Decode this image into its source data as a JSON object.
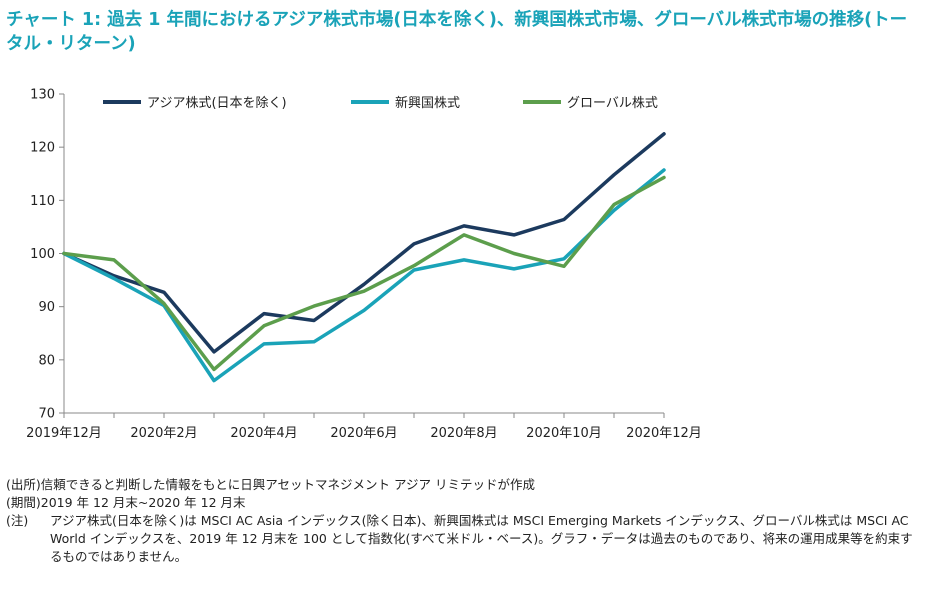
{
  "title": "チャート 1: 過去 1 年間におけるアジア株式市場(日本を除く)、新興国株式市場、グローバル株式市場の推移(トータル・リターン)",
  "notes": [
    {
      "key": "(出所)",
      "text": "信頼できると判断した情報をもとに日興アセットマネジメント アジア リミテッドが作成"
    },
    {
      "key": "(期間)",
      "text": "2019 年 12 月末~2020 年 12 月末"
    },
    {
      "key": "(注)",
      "text": "アジア株式(日本を除く)は MSCI AC Asia インデックス(除く日本)、新興国株式は MSCI Emerging Markets インデックス、グローバル株式は MSCI AC World インデックスを、2019 年 12 月末を 100 として指数化(すべて米ドル・ベース)。グラフ・データは過去のものであり、将来の運用成果等を約束するものではありません。"
    }
  ],
  "chart_data": {
    "type": "line",
    "title": "",
    "xlabel": "",
    "ylabel": "",
    "x": [
      "2019-12",
      "2020-01",
      "2020-02",
      "2020-03",
      "2020-04",
      "2020-05",
      "2020-06",
      "2020-07",
      "2020-08",
      "2020-09",
      "2020-10",
      "2020-11",
      "2020-12"
    ],
    "x_tick_labels": [
      "2019年12月",
      "2020年2月",
      "2020年4月",
      "2020年6月",
      "2020年8月",
      "2020年10月",
      "2020年12月"
    ],
    "x_tick_index": [
      0,
      2,
      4,
      6,
      8,
      10,
      12
    ],
    "ylim": [
      70,
      130
    ],
    "y_ticks": [
      70,
      80,
      90,
      100,
      110,
      120,
      130
    ],
    "grid": false,
    "legend_position": "top",
    "series": [
      {
        "name": "アジア株式(日本を除く)",
        "color": "#1c3a5e",
        "values": [
          100,
          95.8,
          92.7,
          81.5,
          88.7,
          87.4,
          94.2,
          101.8,
          105.2,
          103.5,
          106.4,
          114.8,
          122.5
        ]
      },
      {
        "name": "新興国株式",
        "color": "#1aa3b8",
        "values": [
          100,
          95.3,
          90.2,
          76.1,
          83.0,
          83.4,
          89.3,
          96.9,
          98.8,
          97.1,
          99.0,
          108.1,
          115.7
        ]
      },
      {
        "name": "グローバル株式",
        "color": "#5c9e4c",
        "values": [
          100,
          98.8,
          90.6,
          78.2,
          86.4,
          90.1,
          92.9,
          97.7,
          103.5,
          100.0,
          97.6,
          109.2,
          114.3
        ]
      }
    ]
  }
}
